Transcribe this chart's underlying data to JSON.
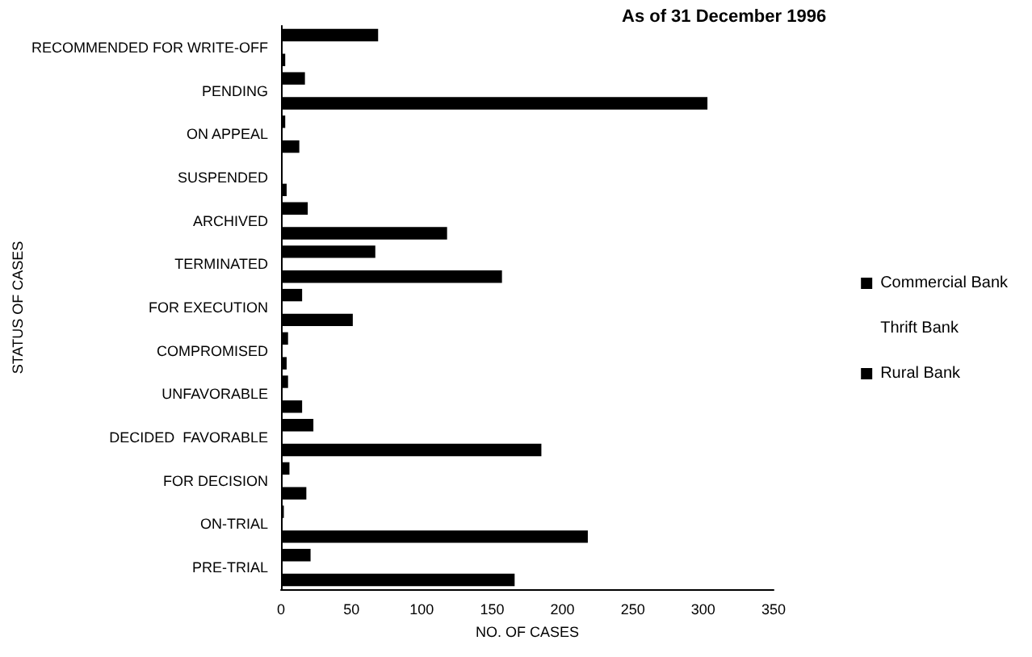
{
  "chart_data": {
    "type": "bar",
    "orientation": "horizontal",
    "title": "As of 31 December 1996",
    "xlabel": "NO. OF CASES",
    "ylabel": "STATUS OF CASES",
    "categories": [
      "RECOMMENDED FOR WRITE-OFF",
      "PENDING",
      "ON APPEAL",
      "SUSPENDED",
      "ARCHIVED",
      "TERMINATED",
      "FOR EXECUTION",
      "COMPROMISED",
      "UNFAVORABLE",
      "DECIDED  FAVORABLE",
      "FOR DECISION",
      "ON-TRIAL",
      "PRE-TRIAL"
    ],
    "series": [
      {
        "name": "Commercial Bank",
        "color": "#000000",
        "values": [
          69,
          17,
          3,
          1,
          19,
          67,
          15,
          5,
          5,
          23,
          6,
          2,
          21
        ]
      },
      {
        "name": "Thrift Bank",
        "values": [
          null,
          null,
          null,
          null,
          null,
          null,
          null,
          null,
          null,
          null,
          null,
          null,
          null
        ]
      },
      {
        "name": "Rural Bank",
        "color": "#000000",
        "values": [
          3,
          303,
          13,
          4,
          118,
          157,
          51,
          4,
          15,
          185,
          18,
          218,
          166
        ]
      }
    ],
    "xlim": [
      0,
      350
    ],
    "xticks": [
      0,
      50,
      100,
      150,
      200,
      250,
      300,
      350
    ],
    "grid": false,
    "legend": "right"
  }
}
